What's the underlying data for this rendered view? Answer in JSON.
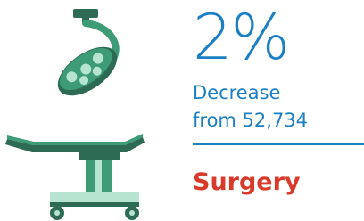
{
  "stat": {
    "value": "2%",
    "line1": "Decrease",
    "line2": "from 52,734"
  },
  "label": "Surgery"
}
